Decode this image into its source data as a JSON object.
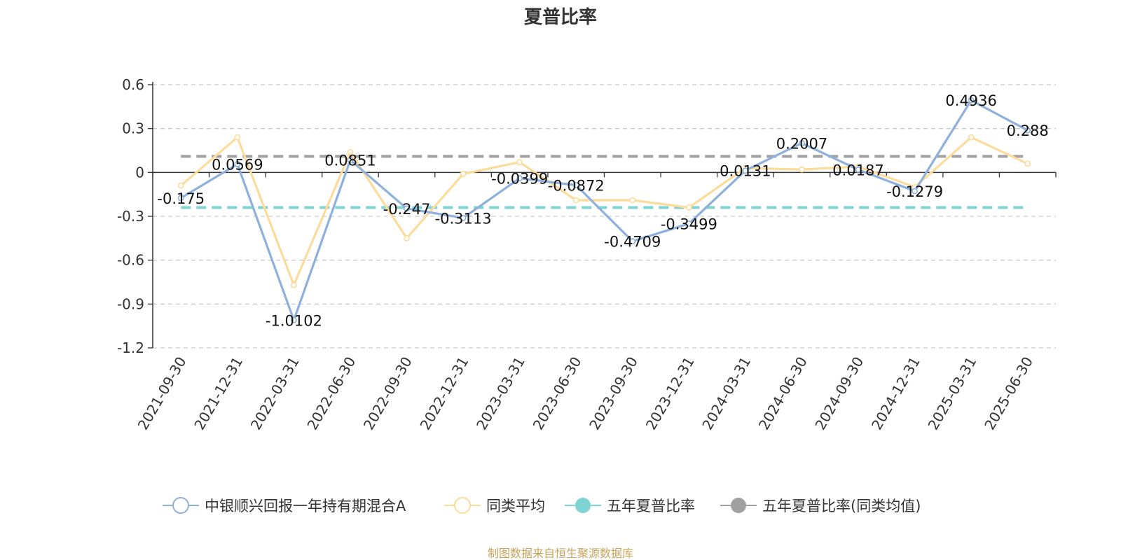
{
  "chart_data": {
    "type": "line",
    "title": "夏普比率",
    "categories": [
      "2021-09-30",
      "2021-12-31",
      "2022-03-31",
      "2022-06-30",
      "2022-09-30",
      "2022-12-31",
      "2023-03-31",
      "2023-06-30",
      "2023-09-30",
      "2023-12-31",
      "2024-03-31",
      "2024-06-30",
      "2024-09-30",
      "2024-12-31",
      "2025-03-31",
      "2025-06-30"
    ],
    "ylim": [
      -1.2,
      0.6
    ],
    "yticks": [
      "0.6",
      "0.3",
      "0",
      "-0.3",
      "-0.6",
      "-0.9",
      "-1.2"
    ],
    "grid": true,
    "legend_position": "bottom",
    "series": [
      {
        "name": "中银顺兴回报一年持有期混合A",
        "color": "#8eb0dc",
        "values": [
          -0.175,
          0.0569,
          -1.0102,
          0.0851,
          -0.247,
          -0.3113,
          -0.0399,
          -0.0872,
          -0.4709,
          -0.3499,
          0.0131,
          0.2007,
          0.0187,
          -0.1279,
          0.4936,
          0.288
        ],
        "labels": [
          "-0.175",
          "0.0569",
          "-1.0102",
          "0.0851",
          "-0.247",
          "-0.3113",
          "-0.0399",
          "-0.0872",
          "-0.4709",
          "-0.3499",
          "0.0131",
          "0.2007",
          "0.0187",
          "-0.1279",
          "0.4936",
          "0.288"
        ]
      },
      {
        "name": "同类平均",
        "color": "#fddb9b",
        "values": [
          -0.09,
          0.24,
          -0.77,
          0.14,
          -0.45,
          -0.01,
          0.07,
          -0.19,
          -0.19,
          -0.24,
          0.03,
          0.02,
          0.04,
          -0.1,
          0.24,
          0.06
        ]
      },
      {
        "name": "五年夏普比率",
        "color": "#7fd3d3",
        "dashed": true,
        "value": -0.24
      },
      {
        "name": "五年夏普比率(同类均值)",
        "color": "#a0a0a0",
        "dashed": true,
        "value": 0.11
      }
    ]
  },
  "source": "制图数据来自恒生聚源数据库"
}
